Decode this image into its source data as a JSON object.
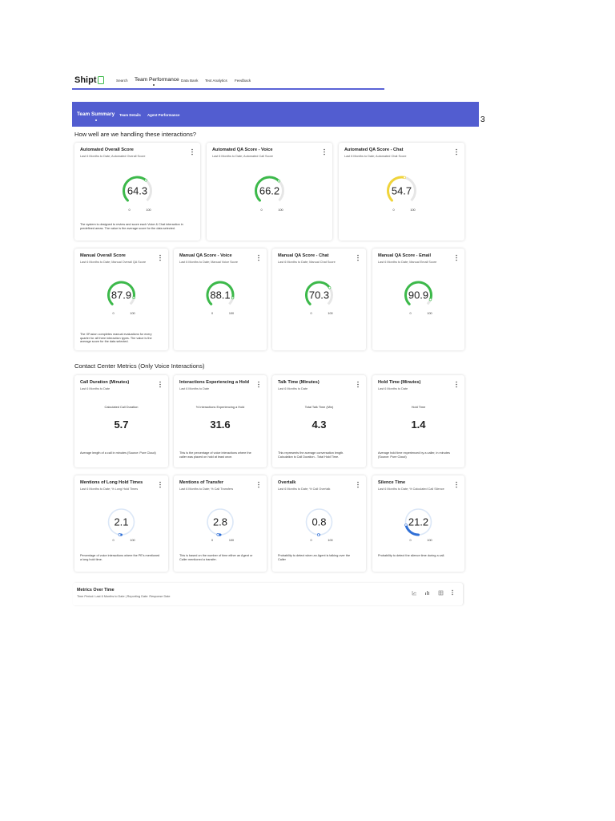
{
  "nav": {
    "logo": "Shipt",
    "links": [
      "Search",
      "Team Performance",
      "Data Bank",
      "Text Analytics",
      "Feedback"
    ],
    "active": 1
  },
  "tabs": [
    "Team Summary",
    "Team Details",
    "Agent Performance"
  ],
  "page_number": "3",
  "sections": [
    {
      "heading": "How well are we handling these interactions?",
      "cards": [
        {
          "title": "Automated Overall Score",
          "subtitle": "Last 6 Months to Date; Automated Overall Score",
          "display": "gauge",
          "value": 64.3,
          "min": 0,
          "max": 100,
          "color": "#3cb94a",
          "track": "#e6e6e6",
          "description": "The system is designed to review and score each Voice & Chat interaction in predefined areas. The value is the average score for the data selected."
        },
        {
          "title": "Automated QA Score - Voice",
          "subtitle": "Last 6 Months to Date; Automated Call Score",
          "display": "gauge",
          "value": 66.2,
          "min": 0,
          "max": 100,
          "color": "#3cb94a",
          "track": "#e6e6e6"
        },
        {
          "title": "Automated QA Score - Chat",
          "subtitle": "Last 6 Months to Date; Automated Chat Score",
          "display": "gauge",
          "value": 54.7,
          "min": 0,
          "max": 100,
          "color": "#f0d43a",
          "track": "#e6e6e6"
        },
        {
          "title": "Manual Overall Score",
          "subtitle": "Last 6 Months to Date; Manual Overall QA Score",
          "display": "gauge",
          "value": 87.9,
          "min": 0,
          "max": 100,
          "color": "#3cb94a",
          "track": "#e6e6e6",
          "description": "The XFusion completes manual evaluations for every quarter for all three interaction types. The value is the average score for the data selected."
        },
        {
          "title": "Manual QA Score - Voice",
          "subtitle": "Last 6 Months to Date; Manual Voice Score",
          "display": "gauge",
          "value": 88.1,
          "min": 0,
          "max": 100,
          "color": "#3cb94a",
          "track": "#e6e6e6"
        },
        {
          "title": "Manual QA Score - Chat",
          "subtitle": "Last 6 Months to Date; Manual Chat Score",
          "display": "gauge",
          "value": 70.3,
          "min": 0,
          "max": 100,
          "color": "#3cb94a",
          "track": "#e6e6e6"
        },
        {
          "title": "Manual QA Score - Email",
          "subtitle": "Last 6 Months to Date; Manual Email Score",
          "display": "gauge",
          "value": 90.9,
          "min": 0,
          "max": 100,
          "color": "#3cb94a",
          "track": "#e6e6e6"
        }
      ]
    },
    {
      "heading": "Contact Center Metrics (Only Voice Interactions)",
      "cards": [
        {
          "title": "Call Duration (Minutes)",
          "subtitle": "Last 6 Months to Date",
          "display": "number",
          "label": "Calculated Call Duration",
          "value": 5.7,
          "description": "Average length of a call in minutes (Source: Pure Cloud)"
        },
        {
          "title": "Interactions Experiencing a Hold",
          "subtitle": "Last 6 Months to Date",
          "display": "number",
          "label": "% Interactions Experiencing a Hold",
          "value": 31.6,
          "description": "This is the percentage of voice interactions where the caller was placed on hold at least once."
        },
        {
          "title": "Talk Time (Minutes)",
          "subtitle": "Last 6 Months to Date",
          "display": "number",
          "label": "Total Talk Time (Min)",
          "value": 4.3,
          "description": "This represents the average conversation length. Calculation is Call Duration - Total Hold Time."
        },
        {
          "title": "Hold Time (Minutes)",
          "subtitle": "Last 6 Months to Date",
          "display": "number",
          "label": "Hold Time",
          "value": 1.4,
          "description": "Average hold time experienced by a caller, in minutes (Source: Pure Cloud)"
        },
        {
          "title": "Mentions of Long Hold Times",
          "subtitle": "Last 6 Months to Date; % Long Hold Times",
          "display": "gauge",
          "value": 2.1,
          "min": 0,
          "max": 100,
          "color": "#2f6fd6",
          "track": "#dbe7f7",
          "description": "Percentage of voice interactions where the PE's mentioned a long hold time."
        },
        {
          "title": "Mentions of Transfer",
          "subtitle": "Last 6 Months to Date; % Call Transfers",
          "display": "gauge",
          "value": 2.8,
          "min": 0,
          "max": 100,
          "color": "#2f6fd6",
          "track": "#dbe7f7",
          "description": "This is based on the number of time either an Agent or Caller mentioned a transfer."
        },
        {
          "title": "Overtalk",
          "subtitle": "Last 6 Months to Date; % Call Overtalk",
          "display": "gauge",
          "value": 0.8,
          "min": 0,
          "max": 100,
          "color": "#2f6fd6",
          "track": "#dbe7f7",
          "description": "Probability to detect when an Agent is talking over the Caller"
        },
        {
          "title": "Silence Time",
          "subtitle": "Last 6 Months to Date; % Calculated Call Silence",
          "display": "gauge",
          "value": 21.2,
          "min": 0,
          "max": 100,
          "color": "#2f6fd6",
          "track": "#dbe7f7",
          "description": "Probability to detect the silence time during a call."
        }
      ]
    }
  ],
  "metrics_over_time": {
    "title": "Metrics Over Time",
    "subtitle": "Time Period: Last 6 Months to Date | Reporting Date: Response Date"
  }
}
